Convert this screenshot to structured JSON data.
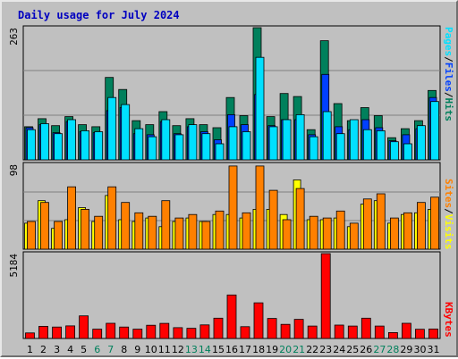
{
  "title": "Daily usage for July 2024",
  "colors": {
    "hits": "#00805c",
    "files": "#0040ff",
    "pages": "#00e0ff",
    "visits": "#ffff00",
    "sites": "#ff8000",
    "kbytes": "#ff0000",
    "weekend": "#00805c"
  },
  "legend_top": {
    "pages": "Pages",
    "files": "Files",
    "hits": "Hits",
    "sep": "/"
  },
  "legend_mid": {
    "sites": "Sites",
    "visits": "Visits",
    "sep": "/"
  },
  "legend_bot": {
    "kbytes": "KBytes"
  },
  "chart_data": {
    "type": "bar",
    "categories": [
      "1",
      "2",
      "3",
      "4",
      "5",
      "6",
      "7",
      "8",
      "9",
      "10",
      "11",
      "12",
      "13",
      "14",
      "15",
      "16",
      "17",
      "18",
      "19",
      "20",
      "21",
      "22",
      "23",
      "24",
      "25",
      "26",
      "27",
      "28",
      "29",
      "30",
      "31"
    ],
    "weekend_days": [
      "6",
      "7",
      "13",
      "14",
      "20",
      "21",
      "27",
      "28"
    ],
    "panels": [
      {
        "ymax_label": "263",
        "ylim": [
          0,
          263
        ],
        "series": [
          {
            "name": "Hits",
            "values": [
              66,
              82,
              68,
              86,
              70,
              66,
              164,
              140,
              78,
              70,
              96,
              68,
              82,
              70,
              64,
              124,
              88,
              263,
              86,
              132,
              126,
              60,
              237,
              112,
              78,
              104,
              88,
              44,
              62,
              78,
              138
            ]
          },
          {
            "name": "Files",
            "values": [
              64,
              70,
              54,
              76,
              56,
              54,
              98,
              104,
              52,
              50,
              76,
              52,
              66,
              56,
              40,
              90,
              70,
              130,
              68,
              80,
              80,
              50,
              170,
              66,
              60,
              80,
              64,
              38,
              50,
              62,
              124
            ]
          },
          {
            "name": "Pages",
            "values": [
              60,
              72,
              52,
              80,
              58,
              56,
              124,
              110,
              62,
              46,
              80,
              50,
              70,
              52,
              32,
              66,
              56,
              204,
              66,
              80,
              90,
              46,
              96,
              52,
              80,
              60,
              58,
              36,
              32,
              68,
              116
            ]
          }
        ]
      },
      {
        "ymax_label": "98",
        "ylim": [
          0,
          98
        ],
        "series": [
          {
            "name": "Visits",
            "values": [
              30,
              56,
              24,
              34,
              48,
              32,
              62,
              34,
              32,
              36,
              26,
              32,
              36,
              32,
              40,
              40,
              36,
              46,
              46,
              40,
              80,
              34,
              34,
              36,
              26,
              52,
              56,
              30,
              40,
              42,
              46
            ]
          },
          {
            "name": "Sites",
            "values": [
              32,
              54,
              32,
              72,
              46,
              38,
              72,
              54,
              42,
              38,
              56,
              36,
              40,
              32,
              44,
              96,
              42,
              96,
              68,
              34,
              70,
              38,
              36,
              44,
              30,
              58,
              64,
              36,
              42,
              54,
              60
            ]
          }
        ]
      },
      {
        "ymax_label": "5184",
        "ylim": [
          0,
          5184
        ],
        "series": [
          {
            "name": "KBytes",
            "values": [
              340,
              740,
              700,
              770,
              1380,
              570,
              930,
              700,
              570,
              810,
              920,
              660,
              620,
              830,
              1240,
              2660,
              720,
              2180,
              1220,
              860,
              1170,
              760,
              5184,
              820,
              760,
              1240,
              760,
              360,
              930,
              560,
              580
            ]
          }
        ]
      }
    ]
  }
}
